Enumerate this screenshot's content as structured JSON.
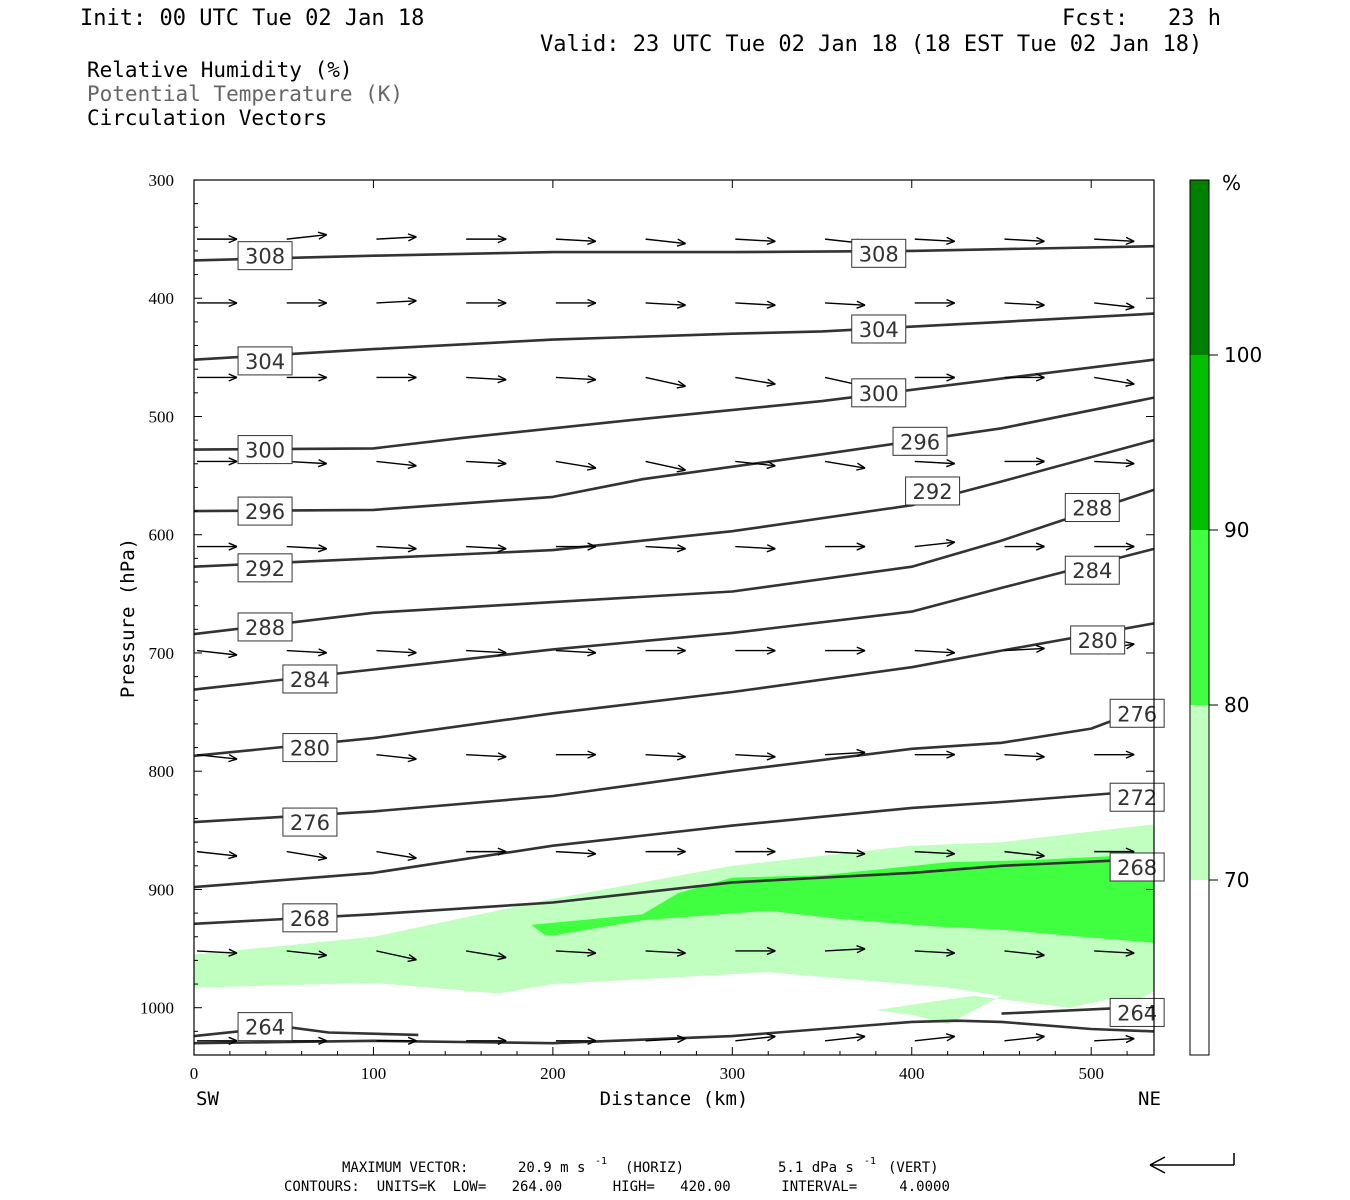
{
  "header": {
    "init": "Init: 00 UTC Tue 02 Jan 18",
    "fcst": "Fcst:   23 h",
    "valid": "Valid: 23 UTC Tue 02 Jan 18 (18 EST Tue 02 Jan 18)",
    "field1": "Relative Humidity (%)",
    "field2": "Potential Temperature (K)",
    "field3": "Circulation Vectors"
  },
  "colors": {
    "rh70": "#c0ffc0",
    "rh80": "#40ff40",
    "rh90": "#00c000",
    "rh100": "#008000",
    "contour": "#333333"
  },
  "footer": {
    "max_vector_label": "MAXIMUM VECTOR:",
    "max_vector_horiz": "20.9 m s",
    "horiz_exp": "-1",
    "horiz_tag": "(HORIZ)",
    "max_vector_vert": "5.1 dPa s",
    "vert_exp": "-1",
    "vert_tag": "(VERT)",
    "contours_line": "CONTOURS:  UNITS=K  LOW=   264.00      HIGH=   420.00      INTERVAL=     4.0000"
  },
  "chart_data": {
    "type": "cross-section",
    "xlabel": "Distance (km)",
    "ylabel": "Pressure (hPa)",
    "xlim": [
      0,
      535
    ],
    "ylim": [
      1040,
      300
    ],
    "x_ticks": [
      0,
      100,
      200,
      300,
      400,
      500
    ],
    "y_ticks": [
      300,
      400,
      500,
      600,
      700,
      800,
      900,
      1000
    ],
    "x_end_labels": {
      "left": "SW",
      "right": "NE"
    },
    "colorbar": {
      "unit": "%",
      "levels": [
        "70",
        "80",
        "90",
        "100"
      ]
    },
    "theta_contours": [
      {
        "value": 308,
        "points": [
          [
            0,
            368
          ],
          [
            100,
            364
          ],
          [
            200,
            361
          ],
          [
            300,
            361
          ],
          [
            400,
            360
          ],
          [
            535,
            356
          ]
        ]
      },
      {
        "value": 304,
        "points": [
          [
            0,
            452
          ],
          [
            100,
            443
          ],
          [
            200,
            435
          ],
          [
            300,
            430
          ],
          [
            350,
            428
          ],
          [
            450,
            420
          ],
          [
            535,
            413
          ]
        ]
      },
      {
        "value": 300,
        "points": [
          [
            0,
            528
          ],
          [
            100,
            527
          ],
          [
            150,
            518
          ],
          [
            250,
            502
          ],
          [
            350,
            487
          ],
          [
            450,
            468
          ],
          [
            535,
            452
          ]
        ]
      },
      {
        "value": 296,
        "points": [
          [
            0,
            580
          ],
          [
            100,
            579
          ],
          [
            200,
            568
          ],
          [
            250,
            553
          ],
          [
            350,
            532
          ],
          [
            450,
            510
          ],
          [
            535,
            484
          ]
        ]
      },
      {
        "value": 292,
        "points": [
          [
            0,
            627
          ],
          [
            100,
            620
          ],
          [
            200,
            613
          ],
          [
            300,
            597
          ],
          [
            400,
            575
          ],
          [
            450,
            555
          ],
          [
            535,
            520
          ]
        ]
      },
      {
        "value": 288,
        "points": [
          [
            0,
            684
          ],
          [
            100,
            666
          ],
          [
            200,
            657
          ],
          [
            300,
            648
          ],
          [
            400,
            627
          ],
          [
            450,
            605
          ],
          [
            535,
            562
          ]
        ]
      },
      {
        "value": 284,
        "points": [
          [
            0,
            731
          ],
          [
            100,
            714
          ],
          [
            200,
            697
          ],
          [
            300,
            683
          ],
          [
            400,
            665
          ],
          [
            450,
            645
          ],
          [
            535,
            612
          ]
        ]
      },
      {
        "value": 280,
        "points": [
          [
            0,
            787
          ],
          [
            100,
            772
          ],
          [
            200,
            751
          ],
          [
            300,
            733
          ],
          [
            400,
            712
          ],
          [
            450,
            698
          ],
          [
            535,
            675
          ]
        ]
      },
      {
        "value": 276,
        "points": [
          [
            0,
            843
          ],
          [
            100,
            834
          ],
          [
            200,
            821
          ],
          [
            300,
            800
          ],
          [
            400,
            781
          ],
          [
            450,
            776
          ],
          [
            500,
            764
          ],
          [
            535,
            744
          ]
        ]
      },
      {
        "value": 272,
        "points": [
          [
            0,
            898
          ],
          [
            100,
            886
          ],
          [
            200,
            863
          ],
          [
            300,
            846
          ],
          [
            400,
            831
          ],
          [
            450,
            826
          ],
          [
            535,
            816
          ]
        ]
      },
      {
        "value": 268,
        "points": [
          [
            0,
            929
          ],
          [
            100,
            921
          ],
          [
            200,
            911
          ],
          [
            300,
            894
          ],
          [
            400,
            886
          ],
          [
            450,
            880
          ],
          [
            535,
            874
          ]
        ]
      },
      {
        "value": 264,
        "points": [
          [
            0,
            1024
          ],
          [
            50,
            1016
          ],
          [
            75,
            1021
          ],
          [
            125,
            1023
          ]
        ]
      },
      {
        "value": 264,
        "points": [
          [
            0,
            1030
          ],
          [
            100,
            1028
          ],
          [
            200,
            1030
          ],
          [
            300,
            1024
          ],
          [
            350,
            1018
          ],
          [
            400,
            1012
          ],
          [
            425,
            1011
          ],
          [
            450,
            1012
          ],
          [
            500,
            1018
          ],
          [
            535,
            1020
          ]
        ]
      },
      {
        "value": 264,
        "points": [
          [
            450,
            1005
          ],
          [
            535,
            999
          ]
        ]
      }
    ],
    "theta_labels": [
      {
        "text": "308",
        "x": 24,
        "p": 364
      },
      {
        "text": "308",
        "x": 366,
        "p": 362
      },
      {
        "text": "304",
        "x": 366,
        "p": 426
      },
      {
        "text": "304",
        "x": 24,
        "p": 453
      },
      {
        "text": "300",
        "x": 366,
        "p": 480
      },
      {
        "text": "300",
        "x": 24,
        "p": 528
      },
      {
        "text": "296",
        "x": 389,
        "p": 521
      },
      {
        "text": "296",
        "x": 24,
        "p": 580
      },
      {
        "text": "292",
        "x": 396,
        "p": 563
      },
      {
        "text": "292",
        "x": 24,
        "p": 628
      },
      {
        "text": "288",
        "x": 485,
        "p": 577
      },
      {
        "text": "288",
        "x": 24,
        "p": 678
      },
      {
        "text": "284",
        "x": 485,
        "p": 630
      },
      {
        "text": "284",
        "x": 49,
        "p": 722
      },
      {
        "text": "280",
        "x": 488,
        "p": 689
      },
      {
        "text": "280",
        "x": 49,
        "p": 780
      },
      {
        "text": "276",
        "x": 510,
        "p": 751
      },
      {
        "text": "276",
        "x": 49,
        "p": 843
      },
      {
        "text": "272",
        "x": 510,
        "p": 822
      },
      {
        "text": "268",
        "x": 510,
        "p": 881
      },
      {
        "text": "268",
        "x": 49,
        "p": 924
      },
      {
        "text": "264",
        "x": 510,
        "p": 1004
      },
      {
        "text": "264",
        "x": 24,
        "p": 1016
      }
    ],
    "rh_regions": [
      {
        "level": 70,
        "points": [
          [
            0,
            955
          ],
          [
            100,
            940
          ],
          [
            200,
            908
          ],
          [
            300,
            880
          ],
          [
            400,
            863
          ],
          [
            450,
            860
          ],
          [
            500,
            851
          ],
          [
            535,
            845
          ],
          [
            535,
            986
          ],
          [
            520,
            999
          ],
          [
            510,
            993
          ],
          [
            488,
            1000
          ],
          [
            435,
            990
          ],
          [
            420,
            993
          ],
          [
            380,
            1002
          ],
          [
            400,
            1006
          ],
          [
            410,
            1010
          ],
          [
            420,
            1014
          ],
          [
            450,
            990
          ],
          [
            420,
            983
          ],
          [
            320,
            970
          ],
          [
            200,
            980
          ],
          [
            170,
            988
          ],
          [
            100,
            979
          ],
          [
            0,
            983
          ]
        ]
      },
      {
        "level": 80,
        "points": [
          [
            188,
            930
          ],
          [
            250,
            921
          ],
          [
            270,
            903
          ],
          [
            300,
            890
          ],
          [
            350,
            888
          ],
          [
            420,
            877
          ],
          [
            470,
            875
          ],
          [
            535,
            870
          ],
          [
            535,
            945
          ],
          [
            510,
            942
          ],
          [
            450,
            934
          ],
          [
            410,
            931
          ],
          [
            360,
            925
          ],
          [
            320,
            918
          ],
          [
            250,
            926
          ],
          [
            200,
            939
          ],
          [
            195,
            938
          ]
        ]
      }
    ],
    "vectors": {
      "note": "circulation vectors, tail at (x,p), u in km-equivalent, w in hPa-equivalent",
      "rows": [
        {
          "p": 350,
          "items": [
            [
              0,
              0
            ],
            [
              50,
              -2
            ],
            [
              100,
              -1
            ],
            [
              150,
              0
            ],
            [
              200,
              1
            ],
            [
              250,
              2
            ],
            [
              300,
              1
            ],
            [
              350,
              2
            ],
            [
              400,
              1
            ],
            [
              450,
              1
            ],
            [
              500,
              1
            ]
          ]
        },
        {
          "p": 404,
          "items": [
            [
              0,
              0
            ],
            [
              50,
              0
            ],
            [
              100,
              -1
            ],
            [
              150,
              0
            ],
            [
              200,
              0
            ],
            [
              250,
              1
            ],
            [
              300,
              1
            ],
            [
              350,
              1
            ],
            [
              400,
              0
            ],
            [
              450,
              1
            ],
            [
              500,
              2
            ]
          ]
        },
        {
          "p": 467,
          "items": [
            [
              0,
              0
            ],
            [
              50,
              0
            ],
            [
              100,
              0
            ],
            [
              150,
              1
            ],
            [
              200,
              1
            ],
            [
              250,
              4
            ],
            [
              300,
              3
            ],
            [
              350,
              4
            ],
            [
              400,
              0
            ],
            [
              450,
              0
            ],
            [
              500,
              3
            ]
          ]
        },
        {
          "p": 538,
          "items": [
            [
              0,
              0
            ],
            [
              50,
              1
            ],
            [
              100,
              2
            ],
            [
              150,
              1
            ],
            [
              200,
              3
            ],
            [
              250,
              4
            ],
            [
              300,
              2
            ],
            [
              350,
              3
            ],
            [
              400,
              1
            ],
            [
              450,
              0
            ],
            [
              500,
              1
            ]
          ]
        },
        {
          "p": 610,
          "items": [
            [
              0,
              0
            ],
            [
              50,
              1
            ],
            [
              100,
              1
            ],
            [
              150,
              1
            ],
            [
              200,
              0
            ],
            [
              250,
              1
            ],
            [
              300,
              1
            ],
            [
              350,
              0
            ],
            [
              400,
              -2
            ],
            [
              450,
              0
            ],
            [
              500,
              0
            ]
          ]
        },
        {
          "p": 698,
          "items": [
            [
              0,
              2
            ],
            [
              50,
              1
            ],
            [
              100,
              1
            ],
            [
              150,
              1
            ],
            [
              200,
              1
            ],
            [
              250,
              0
            ],
            [
              300,
              0
            ],
            [
              350,
              0
            ],
            [
              400,
              1
            ],
            [
              450,
              -1
            ],
            [
              500,
              -3
            ]
          ]
        },
        {
          "p": 786,
          "items": [
            [
              0,
              2
            ],
            [
              50,
              2
            ],
            [
              100,
              2
            ],
            [
              150,
              1
            ],
            [
              200,
              0
            ],
            [
              250,
              1
            ],
            [
              300,
              1
            ],
            [
              350,
              -1
            ],
            [
              400,
              0
            ],
            [
              450,
              1
            ],
            [
              500,
              0
            ]
          ]
        },
        {
          "p": 868,
          "items": [
            [
              0,
              2
            ],
            [
              50,
              3
            ],
            [
              100,
              3
            ],
            [
              150,
              0
            ],
            [
              200,
              1
            ],
            [
              250,
              0
            ],
            [
              300,
              0
            ],
            [
              350,
              1
            ],
            [
              400,
              1
            ],
            [
              450,
              2
            ],
            [
              500,
              0
            ]
          ]
        },
        {
          "p": 952,
          "items": [
            [
              0,
              1
            ],
            [
              50,
              2
            ],
            [
              100,
              4
            ],
            [
              150,
              3
            ],
            [
              200,
              1
            ],
            [
              250,
              1
            ],
            [
              300,
              0
            ],
            [
              350,
              -1
            ],
            [
              400,
              1
            ],
            [
              450,
              2
            ],
            [
              500,
              1
            ]
          ]
        },
        {
          "p": 1028,
          "items": [
            [
              0,
              0
            ],
            [
              50,
              0
            ],
            [
              100,
              0
            ],
            [
              150,
              0
            ],
            [
              200,
              0
            ],
            [
              250,
              -1
            ],
            [
              300,
              -2
            ],
            [
              350,
              -2
            ],
            [
              400,
              -2
            ],
            [
              450,
              -2
            ],
            [
              500,
              -1
            ]
          ]
        }
      ]
    }
  }
}
